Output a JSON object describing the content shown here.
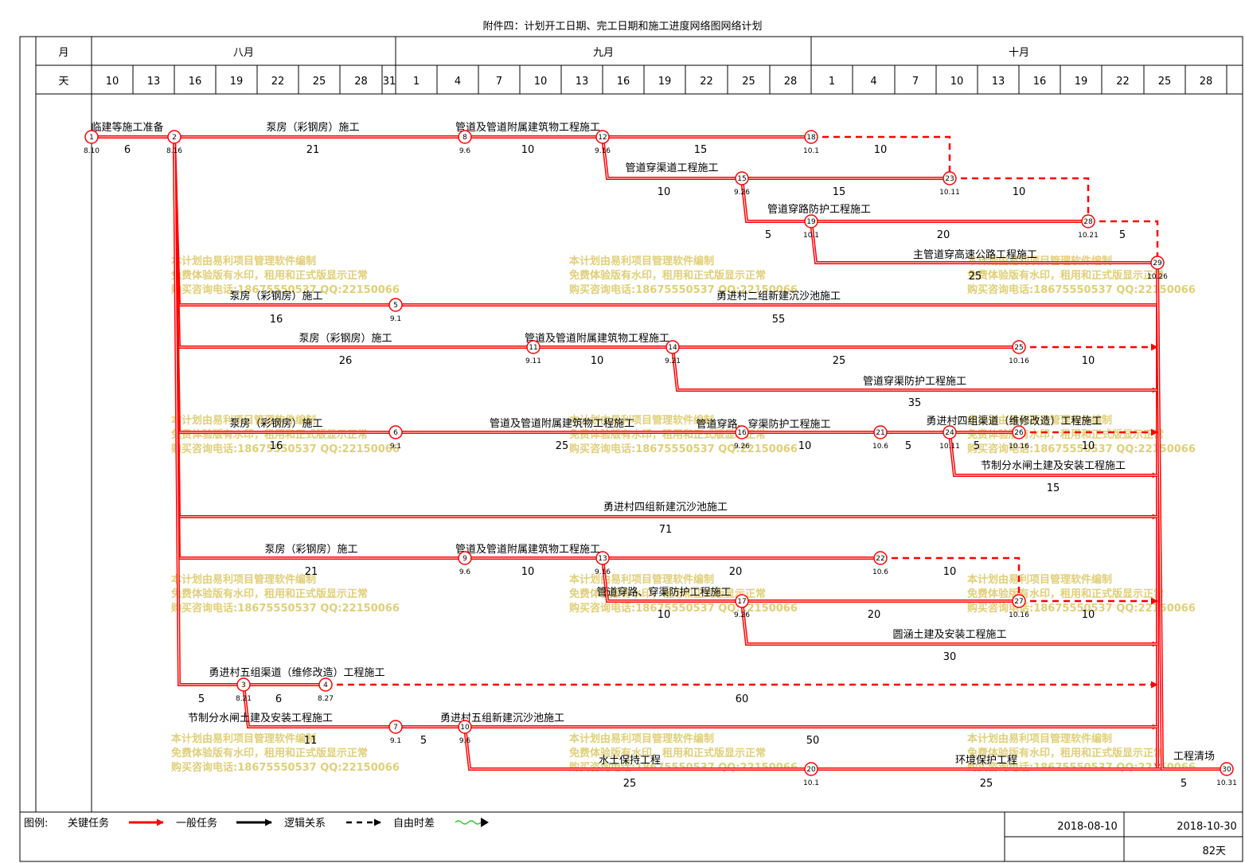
{
  "title": "附件四：计划开工日期、完工日期和施工进度网络图网络计划",
  "header": {
    "month_label": "月",
    "day_label": "天",
    "months": [
      "八月",
      "九月",
      "十月"
    ],
    "days": [
      "10",
      "13",
      "16",
      "19",
      "22",
      "25",
      "28",
      "31",
      "1",
      "4",
      "7",
      "10",
      "13",
      "16",
      "19",
      "22",
      "25",
      "28",
      "1",
      "4",
      "7",
      "10",
      "13",
      "16",
      "19",
      "22",
      "25",
      "28"
    ]
  },
  "nodes": [
    {
      "id": "1",
      "date": "8.10"
    },
    {
      "id": "2",
      "date": "8.16"
    },
    {
      "id": "3",
      "date": "8.21"
    },
    {
      "id": "4",
      "date": "8.27"
    },
    {
      "id": "5",
      "date": "9.1"
    },
    {
      "id": "6",
      "date": "9.1"
    },
    {
      "id": "7",
      "date": "9.1"
    },
    {
      "id": "8",
      "date": "9.6"
    },
    {
      "id": "9",
      "date": "9.6"
    },
    {
      "id": "10",
      "date": "9.6"
    },
    {
      "id": "11",
      "date": "9.11"
    },
    {
      "id": "12",
      "date": "9.16"
    },
    {
      "id": "13",
      "date": "9.16"
    },
    {
      "id": "14",
      "date": "9.21"
    },
    {
      "id": "15",
      "date": "9.26"
    },
    {
      "id": "16",
      "date": "9.26"
    },
    {
      "id": "17",
      "date": "9.26"
    },
    {
      "id": "18",
      "date": "10.1"
    },
    {
      "id": "19",
      "date": "10.1"
    },
    {
      "id": "20",
      "date": "10.1"
    },
    {
      "id": "21",
      "date": "10.6"
    },
    {
      "id": "22",
      "date": "10.6"
    },
    {
      "id": "23",
      "date": "10.11"
    },
    {
      "id": "24",
      "date": "10.11"
    },
    {
      "id": "25",
      "date": "10.16"
    },
    {
      "id": "26",
      "date": "10.16"
    },
    {
      "id": "27",
      "date": "10.16"
    },
    {
      "id": "28",
      "date": "10.21"
    },
    {
      "id": "29",
      "date": "10.26"
    },
    {
      "id": "30",
      "date": "10.31"
    }
  ],
  "tasks": [
    {
      "label": "临建等施工准备",
      "duration": "6"
    },
    {
      "label": "泵房（彩钢房）施工",
      "duration": "21"
    },
    {
      "label": "管道及管道附属建筑物工程施工",
      "duration": "10"
    },
    {
      "label": "",
      "duration": "15"
    },
    {
      "label": "",
      "duration": "10"
    },
    {
      "label": "管道穿渠道工程施工",
      "duration": "10"
    },
    {
      "label": "",
      "duration": "15"
    },
    {
      "label": "",
      "duration": "10"
    },
    {
      "label": "管道穿路防护工程施工",
      "duration": "5"
    },
    {
      "label": "",
      "duration": "20"
    },
    {
      "label": "",
      "duration": "5"
    },
    {
      "label": "主管道穿高速公路工程施工",
      "duration": "25"
    },
    {
      "label": "泵房（彩钢房）施工",
      "duration": "16"
    },
    {
      "label": "勇进村二组新建沉沙池施工",
      "duration": "55"
    },
    {
      "label": "泵房（彩钢房）施工",
      "duration": "26"
    },
    {
      "label": "管道及管道附属建筑物工程施工",
      "duration": "10"
    },
    {
      "label": "",
      "duration": "25"
    },
    {
      "label": "",
      "duration": "10"
    },
    {
      "label": "管道穿渠防护工程施工",
      "duration": "35"
    },
    {
      "label": "泵房（彩钢房）施工",
      "duration": "16"
    },
    {
      "label": "管道及管道附属建筑物工程施工",
      "duration": "25"
    },
    {
      "label": "管道穿路、穿渠防护工程施工",
      "duration": "10"
    },
    {
      "label": "",
      "duration": "5"
    },
    {
      "label": "勇进村四组渠道（维修改造）工程施工",
      "duration": "5"
    },
    {
      "label": "",
      "duration": "10"
    },
    {
      "label": "节制分水闸土建及安装工程施工",
      "duration": "15"
    },
    {
      "label": "勇进村四组新建沉沙池施工",
      "duration": "71"
    },
    {
      "label": "泵房（彩钢房）施工",
      "duration": "21"
    },
    {
      "label": "管道及管道附属建筑物工程施工",
      "duration": "10"
    },
    {
      "label": "",
      "duration": "20"
    },
    {
      "label": "",
      "duration": "10"
    },
    {
      "label": "管道穿路、穿渠防护工程施工",
      "duration": "10"
    },
    {
      "label": "",
      "duration": "20"
    },
    {
      "label": "",
      "duration": "10"
    },
    {
      "label": "圆涵土建及安装工程施工",
      "duration": "30"
    },
    {
      "label": "勇进村五组渠道（维修改造）工程施工",
      "duration": "5"
    },
    {
      "label": "",
      "duration": "6"
    },
    {
      "label": "",
      "duration": "60"
    },
    {
      "label": "节制分水闸土建及安装工程施工",
      "duration": "11"
    },
    {
      "label": "",
      "duration": "5"
    },
    {
      "label": "勇进村五组新建沉沙池施工",
      "duration": "50"
    },
    {
      "label": "水土保持工程",
      "duration": "25"
    },
    {
      "label": "环境保护工程",
      "duration": "25"
    },
    {
      "label": "工程清场",
      "duration": "5"
    }
  ],
  "watermark": {
    "line1": "本计划由易利项目管理软件编制",
    "line2": "免费体验版有水印，租用和正式版显示正常",
    "line3": "购买咨询电话:18675550537 QQ:22150066"
  },
  "legend": {
    "label": "图例:",
    "items": [
      "关键任务",
      "一般任务",
      "逻辑关系",
      "自由时差"
    ]
  },
  "footer": {
    "start_date": "2018-08-10",
    "end_date": "2018-10-30",
    "total_days": "82天"
  },
  "colors": {
    "critical": "#ff0000",
    "normal": "#000000",
    "watermark": "#e0cf78"
  }
}
